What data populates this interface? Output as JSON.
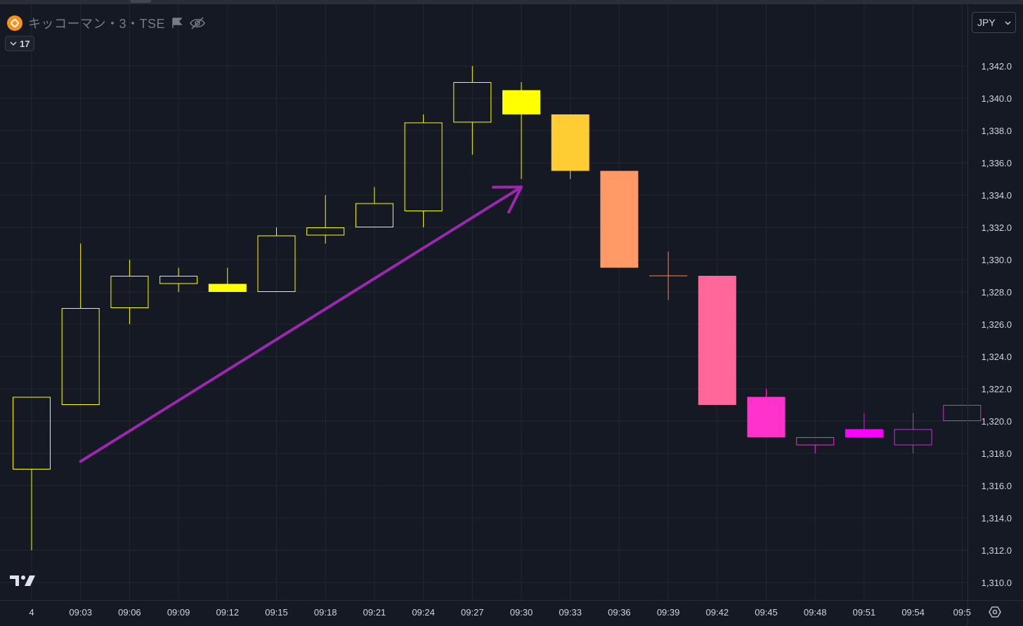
{
  "header": {
    "symbol_title": "キッコーマン・3・TSE",
    "interval_badge": "17",
    "currency": "JPY"
  },
  "icons": {
    "symbol": "exchange-logo-icon",
    "flag": "flag-icon",
    "hidden": "eye-off-icon",
    "chevron": "chevron-down-icon",
    "brand": "tradingview-logo",
    "settings": "gear-icon"
  },
  "colors": {
    "background": "#151924",
    "grid": "#232734",
    "arrow": "#9c27b0",
    "axis_text": "#d1d4dc"
  },
  "chart_data": {
    "type": "candlestick",
    "y_axis": {
      "min": 1309,
      "max": 1343,
      "ticks": [
        1310,
        1312,
        1314,
        1316,
        1318,
        1320,
        1322,
        1324,
        1326,
        1328,
        1330,
        1332,
        1334,
        1336,
        1338,
        1340,
        1342
      ],
      "tick_format": "comma-1dp"
    },
    "x_ticks": [
      "4",
      "09:03",
      "09:06",
      "09:09",
      "09:12",
      "09:15",
      "09:18",
      "09:21",
      "09:24",
      "09:27",
      "09:30",
      "09:33",
      "09:36",
      "09:39",
      "09:42",
      "09:45",
      "09:48",
      "09:51",
      "09:54",
      "09:5"
    ],
    "candles": [
      {
        "open": 1317.0,
        "high": 1321.5,
        "low": 1312.0,
        "close": 1321.5,
        "color": "#ffff00"
      },
      {
        "open": 1321.0,
        "high": 1331.0,
        "low": 1321.0,
        "close": 1327.0,
        "color": "#ffff00"
      },
      {
        "open": 1327.0,
        "high": 1330.0,
        "low": 1326.0,
        "close": 1329.0,
        "color": "#ffff00"
      },
      {
        "open": 1328.5,
        "high": 1329.5,
        "low": 1328.0,
        "close": 1329.0,
        "color": "#ffff00"
      },
      {
        "open": 1328.5,
        "high": 1329.5,
        "low": 1328.0,
        "close": 1328.0,
        "color": "#ffff00"
      },
      {
        "open": 1328.0,
        "high": 1332.0,
        "low": 1328.0,
        "close": 1331.5,
        "color": "#ffff00"
      },
      {
        "open": 1331.5,
        "high": 1334.0,
        "low": 1331.0,
        "close": 1332.0,
        "color": "#ffff00"
      },
      {
        "open": 1332.0,
        "high": 1334.5,
        "low": 1332.0,
        "close": 1333.5,
        "color": "#ffff00"
      },
      {
        "open": 1333.0,
        "high": 1339.0,
        "low": 1332.0,
        "close": 1338.5,
        "color": "#ffff00"
      },
      {
        "open": 1338.5,
        "high": 1342.0,
        "low": 1336.5,
        "close": 1341.0,
        "color": "#ffff00"
      },
      {
        "open": 1340.5,
        "high": 1341.0,
        "low": 1335.0,
        "close": 1339.0,
        "color": "#ffff00"
      },
      {
        "open": 1339.0,
        "high": 1339.0,
        "low": 1335.0,
        "close": 1335.5,
        "color": "#ffcc33"
      },
      {
        "open": 1335.5,
        "high": 1335.5,
        "low": 1329.5,
        "close": 1329.5,
        "color": "#ff9966"
      },
      {
        "open": 1329.0,
        "high": 1330.5,
        "low": 1327.5,
        "close": 1329.0,
        "color": "#ff8844"
      },
      {
        "open": 1329.0,
        "high": 1329.0,
        "low": 1321.0,
        "close": 1321.0,
        "color": "#ff6699"
      },
      {
        "open": 1321.5,
        "high": 1322.0,
        "low": 1319.0,
        "close": 1319.0,
        "color": "#ff33cc"
      },
      {
        "open": 1318.5,
        "high": 1319.0,
        "low": 1318.0,
        "close": 1319.0,
        "color": "#ee33cc"
      },
      {
        "open": 1319.5,
        "high": 1320.5,
        "low": 1319.0,
        "close": 1319.0,
        "color": "#ff00ff"
      },
      {
        "open": 1318.5,
        "high": 1320.5,
        "low": 1318.0,
        "close": 1319.5,
        "color": "#cc33cc"
      },
      {
        "open": 1320.0,
        "high": 1321.0,
        "low": 1320.0,
        "close": 1321.0,
        "color": "#cc33cc"
      }
    ],
    "annotation": {
      "type": "arrow",
      "from_index": 1,
      "from_value": 1317.5,
      "to_index": 10,
      "to_value": 1334.5,
      "color": "#9c27b0"
    }
  }
}
